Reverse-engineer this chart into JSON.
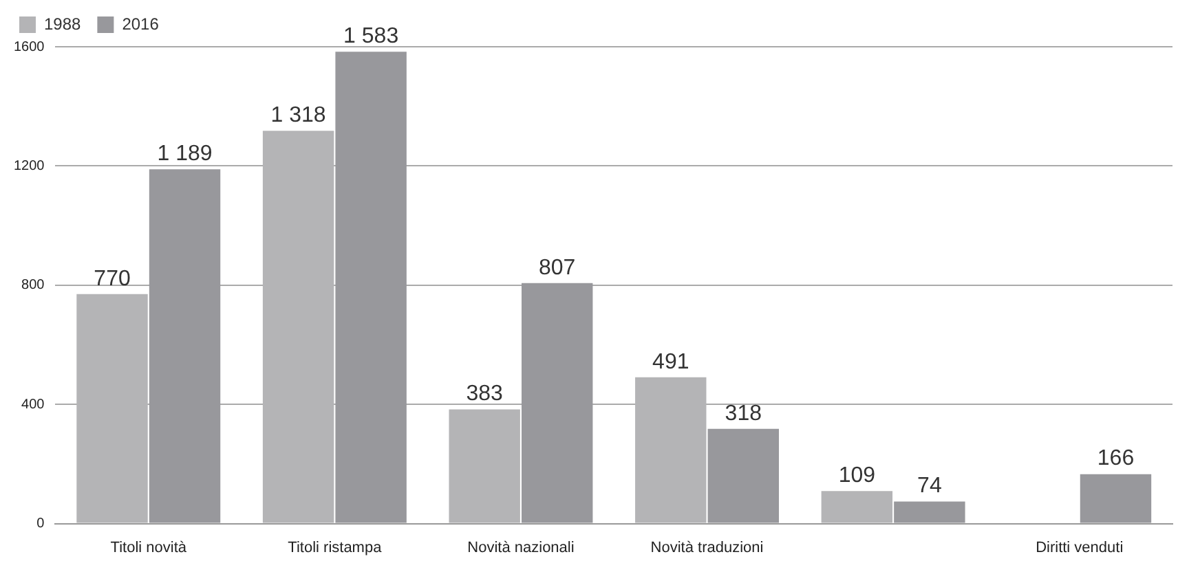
{
  "chart_data": {
    "type": "bar",
    "categories": [
      "Titoli novità",
      "Titoli ristampa",
      "Novità nazionali",
      "Novità traduzioni",
      null,
      "Diritti venduti"
    ],
    "series": [
      {
        "name": "1988",
        "color": "#b4b4b6",
        "values": [
          770,
          1318,
          383,
          491,
          109,
          null
        ],
        "value_labels": [
          "770",
          "1 318",
          "383",
          "491",
          "109",
          null
        ]
      },
      {
        "name": "2016",
        "color": "#98989c",
        "values": [
          1189,
          1583,
          807,
          318,
          74,
          166
        ],
        "value_labels": [
          "1 189",
          "1 583",
          "807",
          "318",
          "74",
          "166"
        ]
      }
    ],
    "ylim": [
      0,
      1600
    ],
    "yticks": [
      0,
      400,
      800,
      1200,
      1600
    ],
    "grid": "y",
    "legend": "top left"
  }
}
